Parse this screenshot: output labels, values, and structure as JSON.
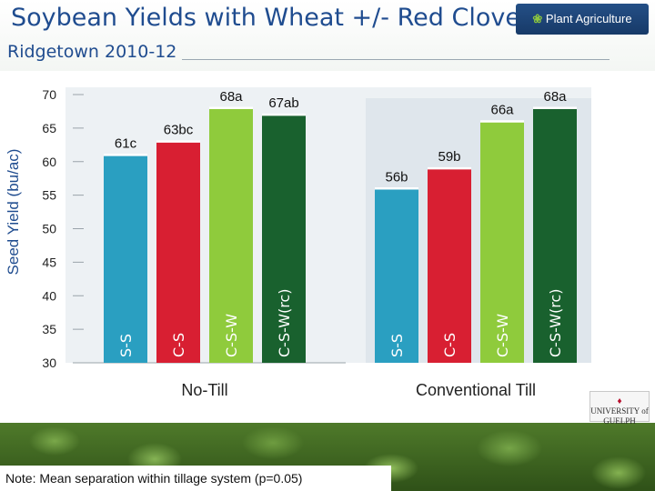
{
  "header": {
    "title": "Soybean Yields with Wheat +/- Red Clover,",
    "subtitle": "Ridgetown 2010-12"
  },
  "logos": {
    "plant_agriculture": "Plant Agriculture",
    "university": "UNIVERSITY of GUELPH"
  },
  "note": "Note: Mean separation within tillage system (p=0.05)",
  "chart_data": {
    "type": "bar",
    "title": "",
    "ylabel": "Seed Yield (bu/ac)",
    "ylim": [
      30,
      70
    ],
    "yticks": [
      30,
      35,
      40,
      45,
      50,
      55,
      60,
      65,
      70
    ],
    "grid": false,
    "groups": [
      {
        "name": "No-Till",
        "bars": [
          {
            "category": "S-S",
            "value": 61,
            "label": "61c",
            "color": "#2a9fc1"
          },
          {
            "category": "C-S",
            "value": 63,
            "label": "63bc",
            "color": "#d81f32"
          },
          {
            "category": "C-S-W",
            "value": 68,
            "label": "68a",
            "color": "#8fcb3c"
          },
          {
            "category": "C-S-W(rc)",
            "value": 67,
            "label": "67ab",
            "color": "#19612e"
          }
        ]
      },
      {
        "name": "Conventional Till",
        "bars": [
          {
            "category": "S-S",
            "value": 56,
            "label": "56b",
            "color": "#2a9fc1"
          },
          {
            "category": "C-S",
            "value": 59,
            "label": "59b",
            "color": "#d81f32"
          },
          {
            "category": "C-S-W",
            "value": 66,
            "label": "66a",
            "color": "#8fcb3c"
          },
          {
            "category": "C-S-W(rc)",
            "value": 68,
            "label": "68a",
            "color": "#19612e"
          }
        ]
      }
    ]
  }
}
